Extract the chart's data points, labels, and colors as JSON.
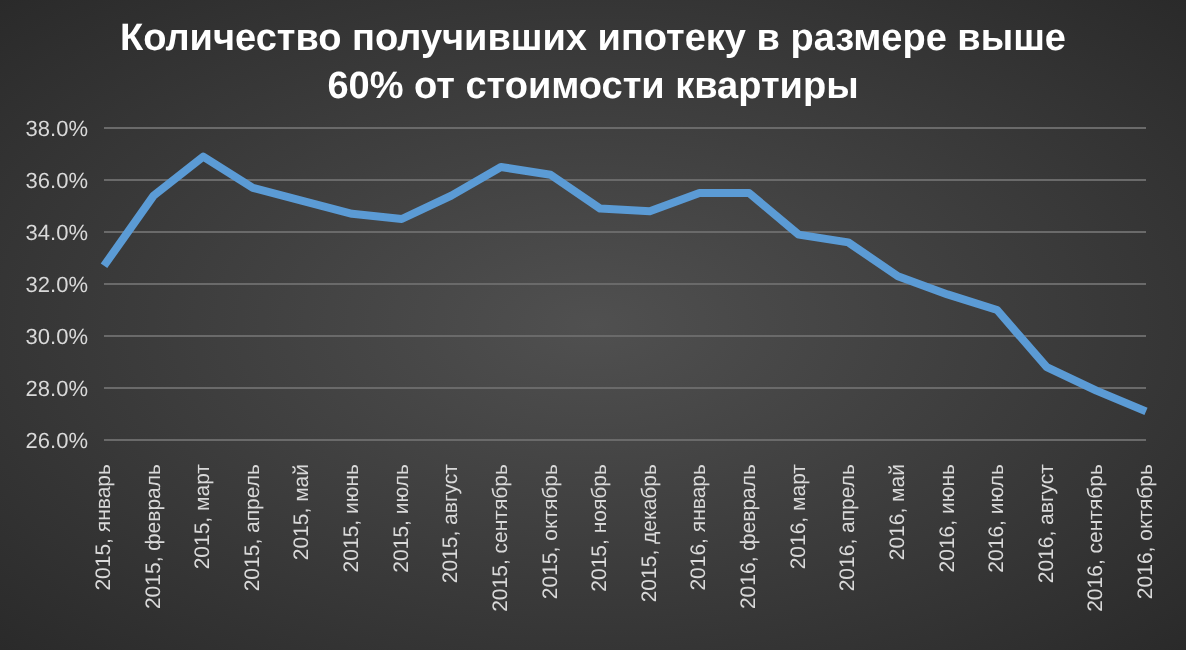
{
  "chart_data": {
    "type": "line",
    "title": "Количество получивших ипотеку в размере выше 60% от стоимости квартиры",
    "categories": [
      "2015, январь",
      "2015, февраль",
      "2015, март",
      "2015, апрель",
      "2015, май",
      "2015, июнь",
      "2015, июль",
      "2015, август",
      "2015, сентябрь",
      "2015, октябрь",
      "2015, ноябрь",
      "2015, декабрь",
      "2016, январь",
      "2016, февраль",
      "2016, март",
      "2016, апрель",
      "2016, май",
      "2016, июнь",
      "2016, июль",
      "2016, август",
      "2016, сентябрь",
      "2016, октябрь"
    ],
    "series": [
      {
        "color": "#5b9bd5",
        "values": [
          32.7,
          35.4,
          36.9,
          35.7,
          35.2,
          34.7,
          34.5,
          35.4,
          36.5,
          36.2,
          34.9,
          34.8,
          35.5,
          35.5,
          33.9,
          33.6,
          32.3,
          31.6,
          31.0,
          28.8,
          27.9,
          27.1
        ]
      }
    ],
    "ylim": [
      26,
      38
    ],
    "yticks": [
      {
        "value": 26,
        "label": "26.0%"
      },
      {
        "value": 28,
        "label": "28.0%"
      },
      {
        "value": 30,
        "label": "30.0%"
      },
      {
        "value": 32,
        "label": "32.0%"
      },
      {
        "value": 34,
        "label": "34.0%"
      },
      {
        "value": 36,
        "label": "36.0%"
      },
      {
        "value": 38,
        "label": "38.0%"
      }
    ],
    "grid": "y",
    "marker": "none",
    "line_style": "solid",
    "legend": false
  }
}
